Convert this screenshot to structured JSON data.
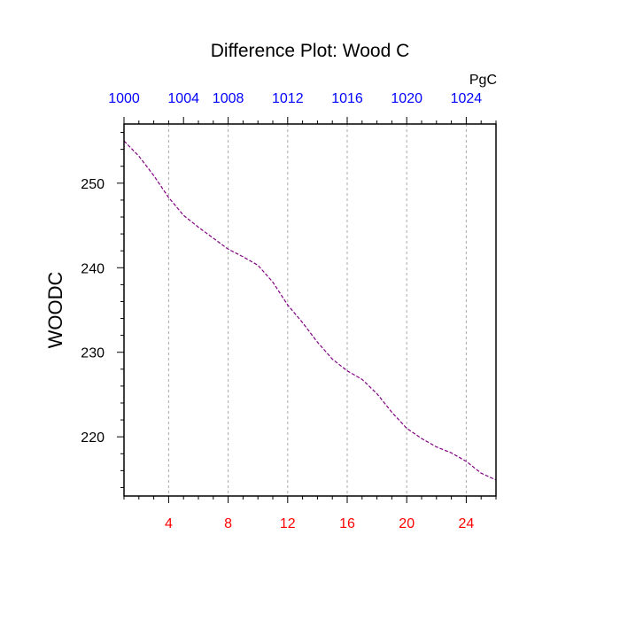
{
  "chart_data": {
    "type": "line",
    "title": "Difference Plot: Wood C",
    "ylabel": "WOODC",
    "top_axis_unit": "PgC",
    "xlim": [
      1,
      26
    ],
    "ylim": [
      213,
      257
    ],
    "x_ticks": [
      "4",
      "8",
      "12",
      "16",
      "20",
      "24"
    ],
    "x_tick_values": [
      4,
      8,
      12,
      16,
      20,
      24
    ],
    "top_ticks": [
      "1000",
      "1004",
      "1008",
      "1012",
      "1016",
      "1020",
      "1024"
    ],
    "top_tick_values": [
      1,
      5,
      8,
      12,
      16,
      20,
      24
    ],
    "y_ticks": [
      "220",
      "230",
      "240",
      "250"
    ],
    "y_tick_values": [
      220,
      230,
      240,
      250
    ],
    "grid": "vertical dashed at bottom ticks",
    "series": [
      {
        "x": [
          1,
          2,
          3,
          4,
          5,
          6,
          7,
          8,
          9,
          10,
          11,
          12,
          13,
          14,
          15,
          16,
          17,
          18,
          19,
          20,
          21,
          22,
          23,
          24,
          25,
          26
        ],
        "values": [
          255.0,
          253.2,
          250.9,
          248.3,
          246.2,
          244.8,
          243.5,
          242.2,
          241.3,
          240.3,
          238.3,
          235.6,
          233.5,
          231.2,
          229.2,
          227.8,
          226.8,
          225.1,
          222.9,
          221.0,
          219.8,
          218.8,
          218.1,
          217.1,
          215.7,
          214.9
        ],
        "color": "#800080"
      }
    ],
    "colors": {
      "bottom_tick_labels": "#ff0000",
      "top_tick_labels": "#0000ff",
      "line": "#800080",
      "grid": "#aaaaaa"
    }
  }
}
